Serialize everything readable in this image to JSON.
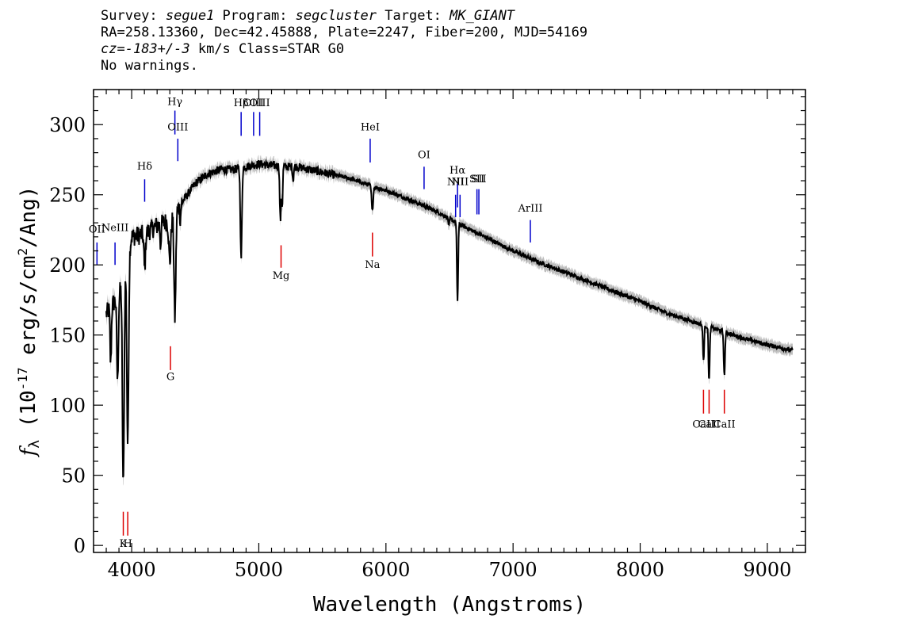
{
  "header": {
    "line1": {
      "survey_label": "Survey: ",
      "survey": "segue1",
      "program_label": " Program: ",
      "program": "segcluster",
      "target_label": " Target: ",
      "target": "MK_GIANT"
    },
    "line2": "RA=258.13360, Dec=42.45888, Plate=2247, Fiber=200, MJD=54169",
    "line3": {
      "cz_label": "cz=",
      "cz": "-183+/-3",
      "cz_suffix": " km/s Class=STAR G0"
    },
    "line4": "No warnings."
  },
  "chart_data": {
    "type": "line",
    "xlabel": "Wavelength (Angstroms)",
    "ylabel": "f_λ (10^-17 erg/s/cm^2/Ang)",
    "xlim": [
      3700,
      9300
    ],
    "ylim": [
      -5,
      325
    ],
    "x_ticks": [
      4000,
      5000,
      6000,
      7000,
      8000,
      9000
    ],
    "y_ticks": [
      0,
      50,
      100,
      150,
      200,
      250,
      300
    ],
    "grid": false,
    "colors": {
      "spectrum": "#000000",
      "error": "#bdbdbd",
      "emission": "#0000cc",
      "absorption": "#dd0000"
    },
    "continuum": [
      [
        3800,
        165
      ],
      [
        3850,
        172
      ],
      [
        3900,
        178
      ],
      [
        3950,
        200
      ],
      [
        4000,
        220
      ],
      [
        4100,
        222
      ],
      [
        4200,
        228
      ],
      [
        4300,
        232
      ],
      [
        4400,
        245
      ],
      [
        4500,
        258
      ],
      [
        4600,
        265
      ],
      [
        4700,
        268
      ],
      [
        4800,
        268
      ],
      [
        4900,
        270
      ],
      [
        5000,
        272
      ],
      [
        5100,
        271
      ],
      [
        5200,
        270
      ],
      [
        5300,
        270
      ],
      [
        5400,
        268
      ],
      [
        5500,
        266
      ],
      [
        5600,
        264
      ],
      [
        5700,
        262
      ],
      [
        5800,
        259
      ],
      [
        5900,
        256
      ],
      [
        6000,
        253
      ],
      [
        6200,
        246
      ],
      [
        6400,
        238
      ],
      [
        6600,
        228
      ],
      [
        6800,
        219
      ],
      [
        7000,
        210
      ],
      [
        7200,
        202
      ],
      [
        7400,
        195
      ],
      [
        7600,
        188
      ],
      [
        7800,
        181
      ],
      [
        8000,
        174
      ],
      [
        8200,
        166
      ],
      [
        8400,
        160
      ],
      [
        8600,
        154
      ],
      [
        8800,
        148
      ],
      [
        9000,
        143
      ],
      [
        9200,
        139
      ]
    ],
    "absorption_features": [
      {
        "x": 3835,
        "depth": 40,
        "width": 5
      },
      {
        "x": 3889,
        "depth": 60,
        "width": 6
      },
      {
        "x": 3934,
        "depth": 150,
        "width": 7
      },
      {
        "x": 3969,
        "depth": 135,
        "width": 7
      },
      {
        "x": 4102,
        "depth": 25,
        "width": 6
      },
      {
        "x": 4227,
        "depth": 15,
        "width": 4
      },
      {
        "x": 4300,
        "depth": 30,
        "width": 8
      },
      {
        "x": 4340,
        "depth": 75,
        "width": 7
      },
      {
        "x": 4383,
        "depth": 10,
        "width": 4
      },
      {
        "x": 4861,
        "depth": 65,
        "width": 6
      },
      {
        "x": 5167,
        "depth": 25,
        "width": 4
      },
      {
        "x": 5173,
        "depth": 25,
        "width": 4
      },
      {
        "x": 5184,
        "depth": 28,
        "width": 4
      },
      {
        "x": 5270,
        "depth": 10,
        "width": 4
      },
      {
        "x": 5893,
        "depth": 18,
        "width": 6
      },
      {
        "x": 6495,
        "depth": 6,
        "width": 4
      },
      {
        "x": 6563,
        "depth": 55,
        "width": 5
      },
      {
        "x": 8498,
        "depth": 25,
        "width": 5
      },
      {
        "x": 8542,
        "depth": 38,
        "width": 5
      },
      {
        "x": 8662,
        "depth": 32,
        "width": 5
      }
    ],
    "emission_lines": [
      {
        "label": "OII",
        "x": 3727,
        "label_y": 223,
        "y_top": 216,
        "y_bottom": 200
      },
      {
        "label": "NeIII",
        "x": 3869,
        "label_y": 224,
        "y_top": 216,
        "y_bottom": 200
      },
      {
        "label": "Hδ",
        "x": 4102,
        "label_y": 268,
        "y_top": 261,
        "y_bottom": 245
      },
      {
        "label": "Hγ",
        "x": 4340,
        "label_y": 314,
        "y_top": 310,
        "y_bottom": 293
      },
      {
        "label": "OIII",
        "x": 4363,
        "label_y": 296,
        "y_top": 290,
        "y_bottom": 274
      },
      {
        "label": "Hβ",
        "x": 4861,
        "label_y": 313,
        "y_top": 309,
        "y_bottom": 292
      },
      {
        "label": "OIII",
        "x": 4959,
        "label_y": 313,
        "y_top": 309,
        "y_bottom": 292
      },
      {
        "label": "OIII",
        "x": 5007,
        "label_y": 313,
        "y_top": 309,
        "y_bottom": 292
      },
      {
        "label": "HeI",
        "x": 5876,
        "label_y": 296,
        "y_top": 290,
        "y_bottom": 273
      },
      {
        "label": "OI",
        "x": 6300,
        "label_y": 276,
        "y_top": 270,
        "y_bottom": 254
      },
      {
        "label": "NII",
        "x": 6548,
        "label_y": 257,
        "y_top": 250,
        "y_bottom": 234
      },
      {
        "label": "Hα",
        "x": 6563,
        "label_y": 265,
        "y_top": 258,
        "y_bottom": 241
      },
      {
        "label": "NII",
        "x": 6583,
        "label_y": 257,
        "y_top": 250,
        "y_bottom": 234
      },
      {
        "label": "SII",
        "x": 6716,
        "label_y": 259,
        "y_top": 254,
        "y_bottom": 236
      },
      {
        "label": "SII",
        "x": 6731,
        "label_y": 259,
        "y_top": 254,
        "y_bottom": 236
      },
      {
        "label": "ArIII",
        "x": 7136,
        "label_y": 238,
        "y_top": 232,
        "y_bottom": 216
      }
    ],
    "absorption_lines": [
      {
        "label": "K",
        "x": 3934,
        "y_top": 24,
        "y_bottom": 7,
        "label_y": -1
      },
      {
        "label": "H",
        "x": 3969,
        "y_top": 24,
        "y_bottom": 7,
        "label_y": -1
      },
      {
        "label": "G",
        "x": 4305,
        "y_top": 142,
        "y_bottom": 125,
        "label_y": 118
      },
      {
        "label": "Mg",
        "x": 5175,
        "y_top": 214,
        "y_bottom": 198,
        "label_y": 190
      },
      {
        "label": "Na",
        "x": 5894,
        "y_top": 223,
        "y_bottom": 206,
        "label_y": 198
      },
      {
        "label": "CaII",
        "x": 8498,
        "y_top": 111,
        "y_bottom": 94,
        "label_y": 84
      },
      {
        "label": "CaII",
        "x": 8542,
        "y_top": 111,
        "y_bottom": 94,
        "label_y": 84
      },
      {
        "label": "CaII",
        "x": 8662,
        "y_top": 111,
        "y_bottom": 94,
        "label_y": 84
      }
    ],
    "spectrum_range": [
      3800,
      9200
    ]
  }
}
